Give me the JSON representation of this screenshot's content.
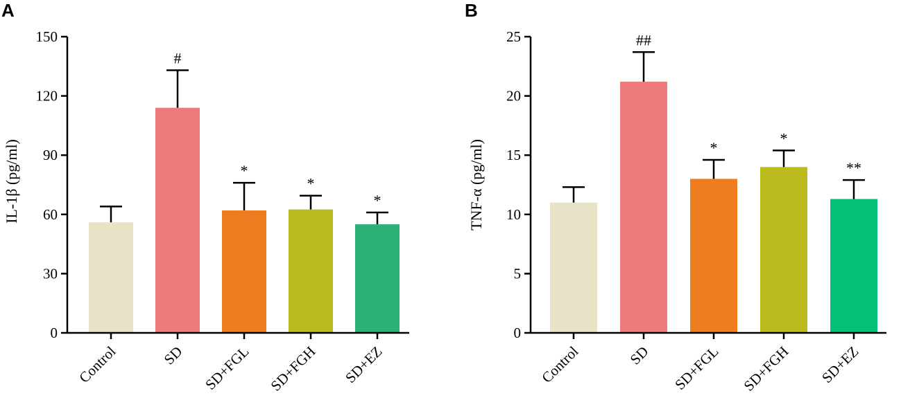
{
  "chart_data": [
    {
      "type": "bar",
      "panel_label": "A",
      "ylabel": "IL-1β (pg/ml)",
      "ylim": [
        0,
        150
      ],
      "yticks": [
        0,
        30,
        60,
        90,
        120,
        150
      ],
      "ytick_labels": [
        "0",
        "30",
        "60",
        "90",
        "120",
        "150"
      ],
      "categories": [
        "Control",
        "SD",
        "SD+FGL",
        "SD+FGH",
        "SD+EZ"
      ],
      "values": [
        56,
        114,
        62,
        62.5,
        55
      ],
      "errors": [
        8,
        19,
        14,
        7,
        6
      ],
      "significance": [
        "",
        "#",
        "*",
        "*",
        "*"
      ],
      "colors": [
        "#e8e2c6",
        "#ee7b7b",
        "#ee7d20",
        "#bcbb1e",
        "#2db178"
      ]
    },
    {
      "type": "bar",
      "panel_label": "B",
      "ylabel": "TNF-α (pg/ml)",
      "ylim": [
        0,
        25
      ],
      "yticks": [
        0,
        5,
        10,
        15,
        20,
        25
      ],
      "ytick_labels": [
        "0",
        "5",
        "10",
        "15",
        "20",
        "25"
      ],
      "categories": [
        "Control",
        "SD",
        "SD+FGL",
        "SD+FGH",
        "SD+EZ"
      ],
      "values": [
        11,
        21.2,
        13,
        14,
        11.3
      ],
      "errors": [
        1.3,
        2.5,
        1.6,
        1.4,
        1.6
      ],
      "significance": [
        "",
        "##",
        "*",
        "*",
        "**"
      ],
      "colors": [
        "#e8e2c6",
        "#ee7b7b",
        "#ee7d20",
        "#bcbb1e",
        "#06c07a"
      ]
    }
  ]
}
